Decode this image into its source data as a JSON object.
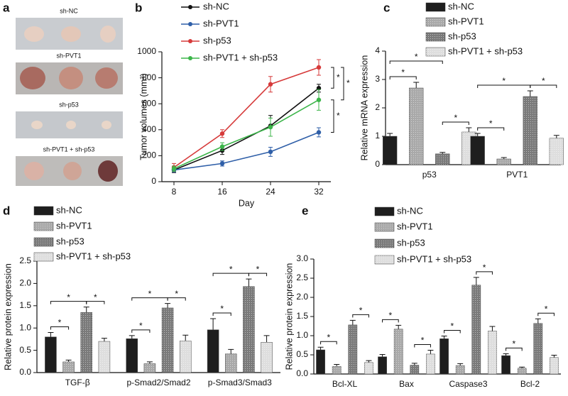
{
  "photo_panel": {
    "panel_label": "a",
    "labels": [
      "sh-NC",
      "sh-PVT1",
      "sh-p53",
      "sh-PVT1 + sh-p53"
    ]
  },
  "chart_data": [
    {
      "type": "line",
      "panel_label": "b",
      "x_label": "Day",
      "y_label": "Tumor volumes (mm³)",
      "x": [
        8,
        16,
        24,
        32
      ],
      "xlim": [
        6,
        34
      ],
      "xticks": [
        8,
        16,
        24,
        32
      ],
      "ylim": [
        0,
        1000
      ],
      "yticks": [
        0,
        200,
        400,
        600,
        800,
        1000
      ],
      "series": [
        {
          "name": "sh-NC",
          "color": "#111111",
          "values": [
            90,
            240,
            430,
            720
          ],
          "errors": [
            20,
            30,
            80,
            30
          ]
        },
        {
          "name": "sh-PVT1",
          "color": "#2f5fa8",
          "values": [
            90,
            140,
            230,
            380
          ],
          "errors": [
            15,
            20,
            35,
            35
          ]
        },
        {
          "name": "sh-p53",
          "color": "#d63a3a",
          "values": [
            110,
            370,
            750,
            880
          ],
          "errors": [
            30,
            30,
            60,
            60
          ]
        },
        {
          "name": "sh-PVT1 + sh-p53",
          "color": "#3cb54a",
          "values": [
            100,
            270,
            420,
            630
          ],
          "errors": [
            20,
            30,
            70,
            80
          ]
        }
      ],
      "annotations": [
        "*",
        "*",
        "*"
      ]
    },
    {
      "type": "bar",
      "panel_label": "c",
      "y_label": "Relative mRNA expression",
      "categories": [
        "p53",
        "PVT1"
      ],
      "ylim": [
        0,
        4
      ],
      "yticks": [
        0,
        1,
        2,
        3,
        4
      ],
      "series": [
        {
          "name": "sh-NC",
          "color": "#1e1e1e",
          "values": [
            1.0,
            1.0
          ],
          "errors": [
            0.1,
            0.1
          ]
        },
        {
          "name": "sh-PVT1",
          "color": "#a9a9a9",
          "values": [
            2.7,
            0.2
          ],
          "errors": [
            0.2,
            0.05
          ]
        },
        {
          "name": "sh-p53",
          "color": "#7a7a7a",
          "values": [
            0.38,
            2.4
          ],
          "errors": [
            0.05,
            0.2
          ]
        },
        {
          "name": "sh-PVT1 + sh-p53",
          "color": "#dedede",
          "values": [
            1.15,
            0.93
          ],
          "errors": [
            0.15,
            0.1
          ]
        }
      ],
      "annotations": [
        "*",
        "*",
        "*",
        "*",
        "*",
        "*"
      ]
    },
    {
      "type": "bar",
      "panel_label": "d",
      "y_label": "Relative protein expression",
      "categories": [
        "TGF-β",
        "p-Smad2/Smad2",
        "p-Smad3/Smad3"
      ],
      "ylim": [
        0,
        2.5
      ],
      "yticks": [
        {
          "value": 0,
          "label": "0.0"
        },
        0.5,
        {
          "value": 1,
          "label": "1.0"
        },
        1.5,
        {
          "value": 2,
          "label": "2.0"
        },
        2.5
      ],
      "series": [
        {
          "name": "sh-NC",
          "color": "#1e1e1e",
          "values": [
            0.8,
            0.76,
            0.96
          ],
          "errors": [
            0.1,
            0.07,
            0.25
          ]
        },
        {
          "name": "sh-PVT1",
          "color": "#a9a9a9",
          "values": [
            0.24,
            0.2,
            0.42
          ],
          "errors": [
            0.04,
            0.04,
            0.1
          ]
        },
        {
          "name": "sh-p53",
          "color": "#7a7a7a",
          "values": [
            1.35,
            1.45,
            1.93
          ],
          "errors": [
            0.12,
            0.1,
            0.17
          ]
        },
        {
          "name": "sh-PVT1 + sh-p53",
          "color": "#dedede",
          "values": [
            0.7,
            0.71,
            0.68
          ],
          "errors": [
            0.07,
            0.13,
            0.15
          ]
        }
      ],
      "annotations": [
        "*",
        "*",
        "*",
        "*",
        "*",
        "*",
        "*",
        "*",
        "*"
      ]
    },
    {
      "type": "bar",
      "panel_label": "e",
      "y_label": "Relative protein expression",
      "categories": [
        "Bcl-XL",
        "Bax",
        "Caspase3",
        "Bcl-2"
      ],
      "ylim": [
        0,
        3
      ],
      "yticks": [
        {
          "value": 0,
          "label": "0.0"
        },
        0.5,
        {
          "value": 1,
          "label": "1.0"
        },
        1.5,
        {
          "value": 2,
          "label": "2.0"
        },
        2.5,
        {
          "value": 3,
          "label": "3.0"
        }
      ],
      "series": [
        {
          "name": "sh-NC",
          "color": "#1e1e1e",
          "values": [
            0.63,
            0.45,
            0.92,
            0.48
          ],
          "errors": [
            0.07,
            0.06,
            0.07,
            0.05
          ]
        },
        {
          "name": "sh-PVT1",
          "color": "#a9a9a9",
          "values": [
            0.2,
            1.17,
            0.22,
            0.15
          ],
          "errors": [
            0.05,
            0.1,
            0.05,
            0.03
          ]
        },
        {
          "name": "sh-p53",
          "color": "#7a7a7a",
          "values": [
            1.28,
            0.23,
            2.32,
            1.32
          ],
          "errors": [
            0.12,
            0.05,
            0.2,
            0.12
          ]
        },
        {
          "name": "sh-PVT1 + sh-p53",
          "color": "#dedede",
          "values": [
            0.3,
            0.52,
            1.12,
            0.43
          ],
          "errors": [
            0.05,
            0.1,
            0.12,
            0.06
          ]
        }
      ],
      "annotations": [
        "*",
        "*",
        "*",
        "*",
        "*",
        "*",
        "*",
        "*"
      ]
    }
  ]
}
